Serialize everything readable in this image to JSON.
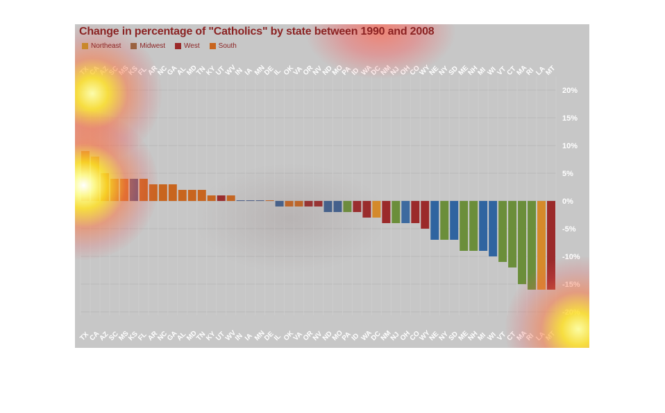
{
  "chart_data": {
    "type": "bar",
    "title": "Change in percentage of \"Catholics\" by state between 1990 and 2008",
    "legend": [
      {
        "name": "Northeast",
        "color": "#c9882b"
      },
      {
        "name": "Midwest",
        "color": "#9a6340"
      },
      {
        "name": "West",
        "color": "#9b2a2a"
      },
      {
        "name": "South",
        "color": "#c8651e"
      }
    ],
    "legend_position": "top-left",
    "y_axis_position": "right",
    "ylim": [
      -22,
      22
    ],
    "yticks": [
      "20%",
      "15%",
      "10%",
      "5%",
      "0%",
      "-5%",
      "-10%",
      "-15%",
      "-20%"
    ],
    "ytick_values": [
      20,
      15,
      10,
      5,
      0,
      -5,
      -10,
      -15,
      -20
    ],
    "grid": true,
    "categories": [
      "TX",
      "CA",
      "AZ",
      "SC",
      "MS",
      "KS",
      "FL",
      "AR",
      "NC",
      "GA",
      "AL",
      "MD",
      "TN",
      "KY",
      "UT",
      "WV",
      "IN",
      "IA",
      "MN",
      "DE",
      "IL",
      "OK",
      "VA",
      "OR",
      "NV",
      "ND",
      "MO",
      "PA",
      "ID",
      "WA",
      "DC",
      "NM",
      "NJ",
      "OH",
      "CO",
      "WY",
      "NE",
      "NY",
      "SD",
      "ME",
      "NH",
      "MI",
      "WI",
      "VT",
      "CT",
      "MA",
      "RI",
      "LA",
      "MT"
    ],
    "values": [
      9,
      8,
      5,
      4,
      4,
      4,
      4,
      3,
      3,
      3,
      2,
      2,
      2,
      1,
      1,
      1,
      0,
      0,
      0,
      0,
      -1,
      -1,
      -1,
      -1,
      -1,
      -2,
      -2,
      -2,
      -2,
      -3,
      -3,
      -4,
      -4,
      -4,
      -4,
      -5,
      -7,
      -7,
      -7,
      -9,
      -9,
      -9,
      -10,
      -11,
      -12,
      -15,
      -16,
      -16,
      -16
    ],
    "colors": [
      "#c8651e",
      "#c9882b",
      "#c8651e",
      "#c8651e",
      "#c8651e",
      "#5a4f7a",
      "#c8651e",
      "#c8651e",
      "#c8651e",
      "#c8651e",
      "#c8651e",
      "#c8651e",
      "#c8651e",
      "#c8651e",
      "#9b2a2a",
      "#c8651e",
      "#4a5f8a",
      "#4a5f8a",
      "#4a5f8a",
      "#c8651e",
      "#3d5f8f",
      "#c8651e",
      "#c8651e",
      "#9b2a2a",
      "#9b2a2a",
      "#3d5f8f",
      "#3d5f8f",
      "#6b8e3a",
      "#9b2a2a",
      "#9b2a2a",
      "#d68a2a",
      "#9b2a2a",
      "#6b8e3a",
      "#3d6a9f",
      "#9b2a2a",
      "#9b2a2a",
      "#2f64a0",
      "#6b8e3a",
      "#2f64a0",
      "#6b8e3a",
      "#6b8e3a",
      "#2f64a0",
      "#2f64a0",
      "#6b8e3a",
      "#6b8e3a",
      "#6b8e3a",
      "#6b8e3a",
      "#d68a2a",
      "#9b2a2a"
    ]
  }
}
